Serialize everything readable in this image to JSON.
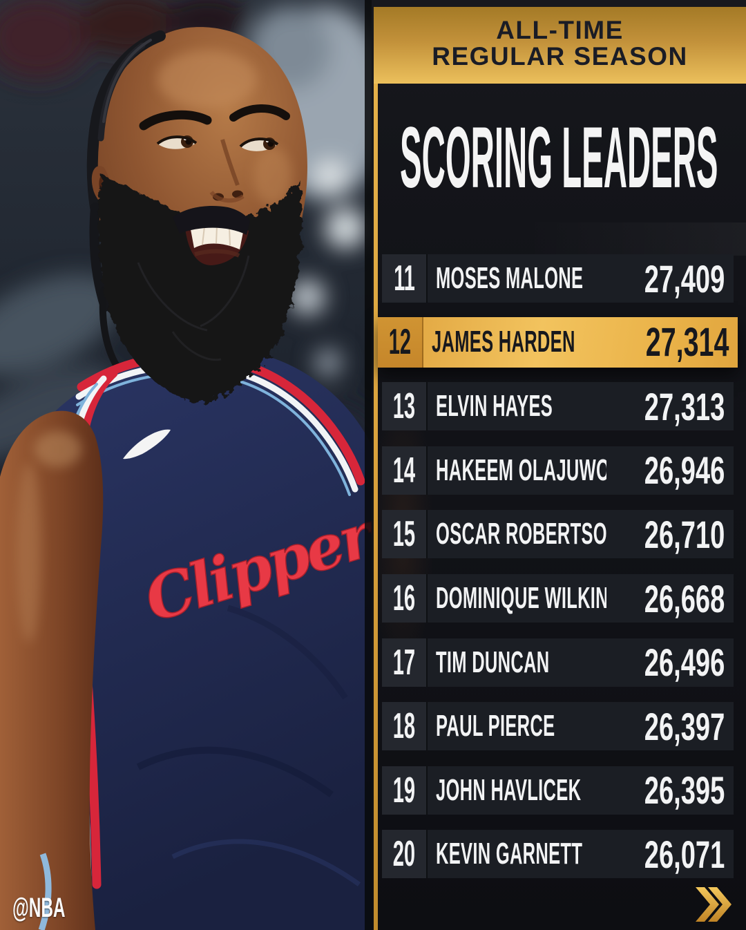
{
  "banner": {
    "line1": "ALL-TIME",
    "line2": "REGULAR SEASON"
  },
  "title": "SCORING LEADERS",
  "leaderboard": {
    "rows": [
      {
        "rank": "11",
        "name": "MOSES MALONE",
        "points": "27,409",
        "highlighted": false
      },
      {
        "rank": "12",
        "name": "JAMES HARDEN",
        "points": "27,314",
        "highlighted": true
      },
      {
        "rank": "13",
        "name": "ELVIN HAYES",
        "points": "27,313",
        "highlighted": false
      },
      {
        "rank": "14",
        "name": "HAKEEM OLAJUWON",
        "points": "26,946",
        "highlighted": false
      },
      {
        "rank": "15",
        "name": "OSCAR ROBERTSON",
        "points": "26,710",
        "highlighted": false
      },
      {
        "rank": "16",
        "name": "DOMINIQUE WILKINS",
        "points": "26,668",
        "highlighted": false
      },
      {
        "rank": "17",
        "name": "TIM DUNCAN",
        "points": "26,496",
        "highlighted": false
      },
      {
        "rank": "18",
        "name": "PAUL PIERCE",
        "points": "26,397",
        "highlighted": false
      },
      {
        "rank": "19",
        "name": "JOHN HAVLICEK",
        "points": "26,395",
        "highlighted": false
      },
      {
        "rank": "20",
        "name": "KEVIN GARNETT",
        "points": "26,071",
        "highlighted": false
      }
    ]
  },
  "pagination": {
    "icon": "double-chevron-right-icon"
  },
  "watermark": "@NBA",
  "photo": {
    "subject": "James Harden portrait",
    "jersey_script": "Clippers",
    "brand_icon": "nike-swoosh-icon"
  },
  "colors": {
    "accent_gold": "#E3AC45",
    "banner_text": "#1A1C25",
    "panel_bg": "#121318",
    "row_bg": "#1B1E24",
    "row_rank_bg": "#24272E",
    "highlight_gold": "#F2C35E",
    "text_light": "#F2F3F4",
    "text_dark": "#17181D",
    "script_red": "#E83945",
    "jersey_navy": "#232C52"
  }
}
